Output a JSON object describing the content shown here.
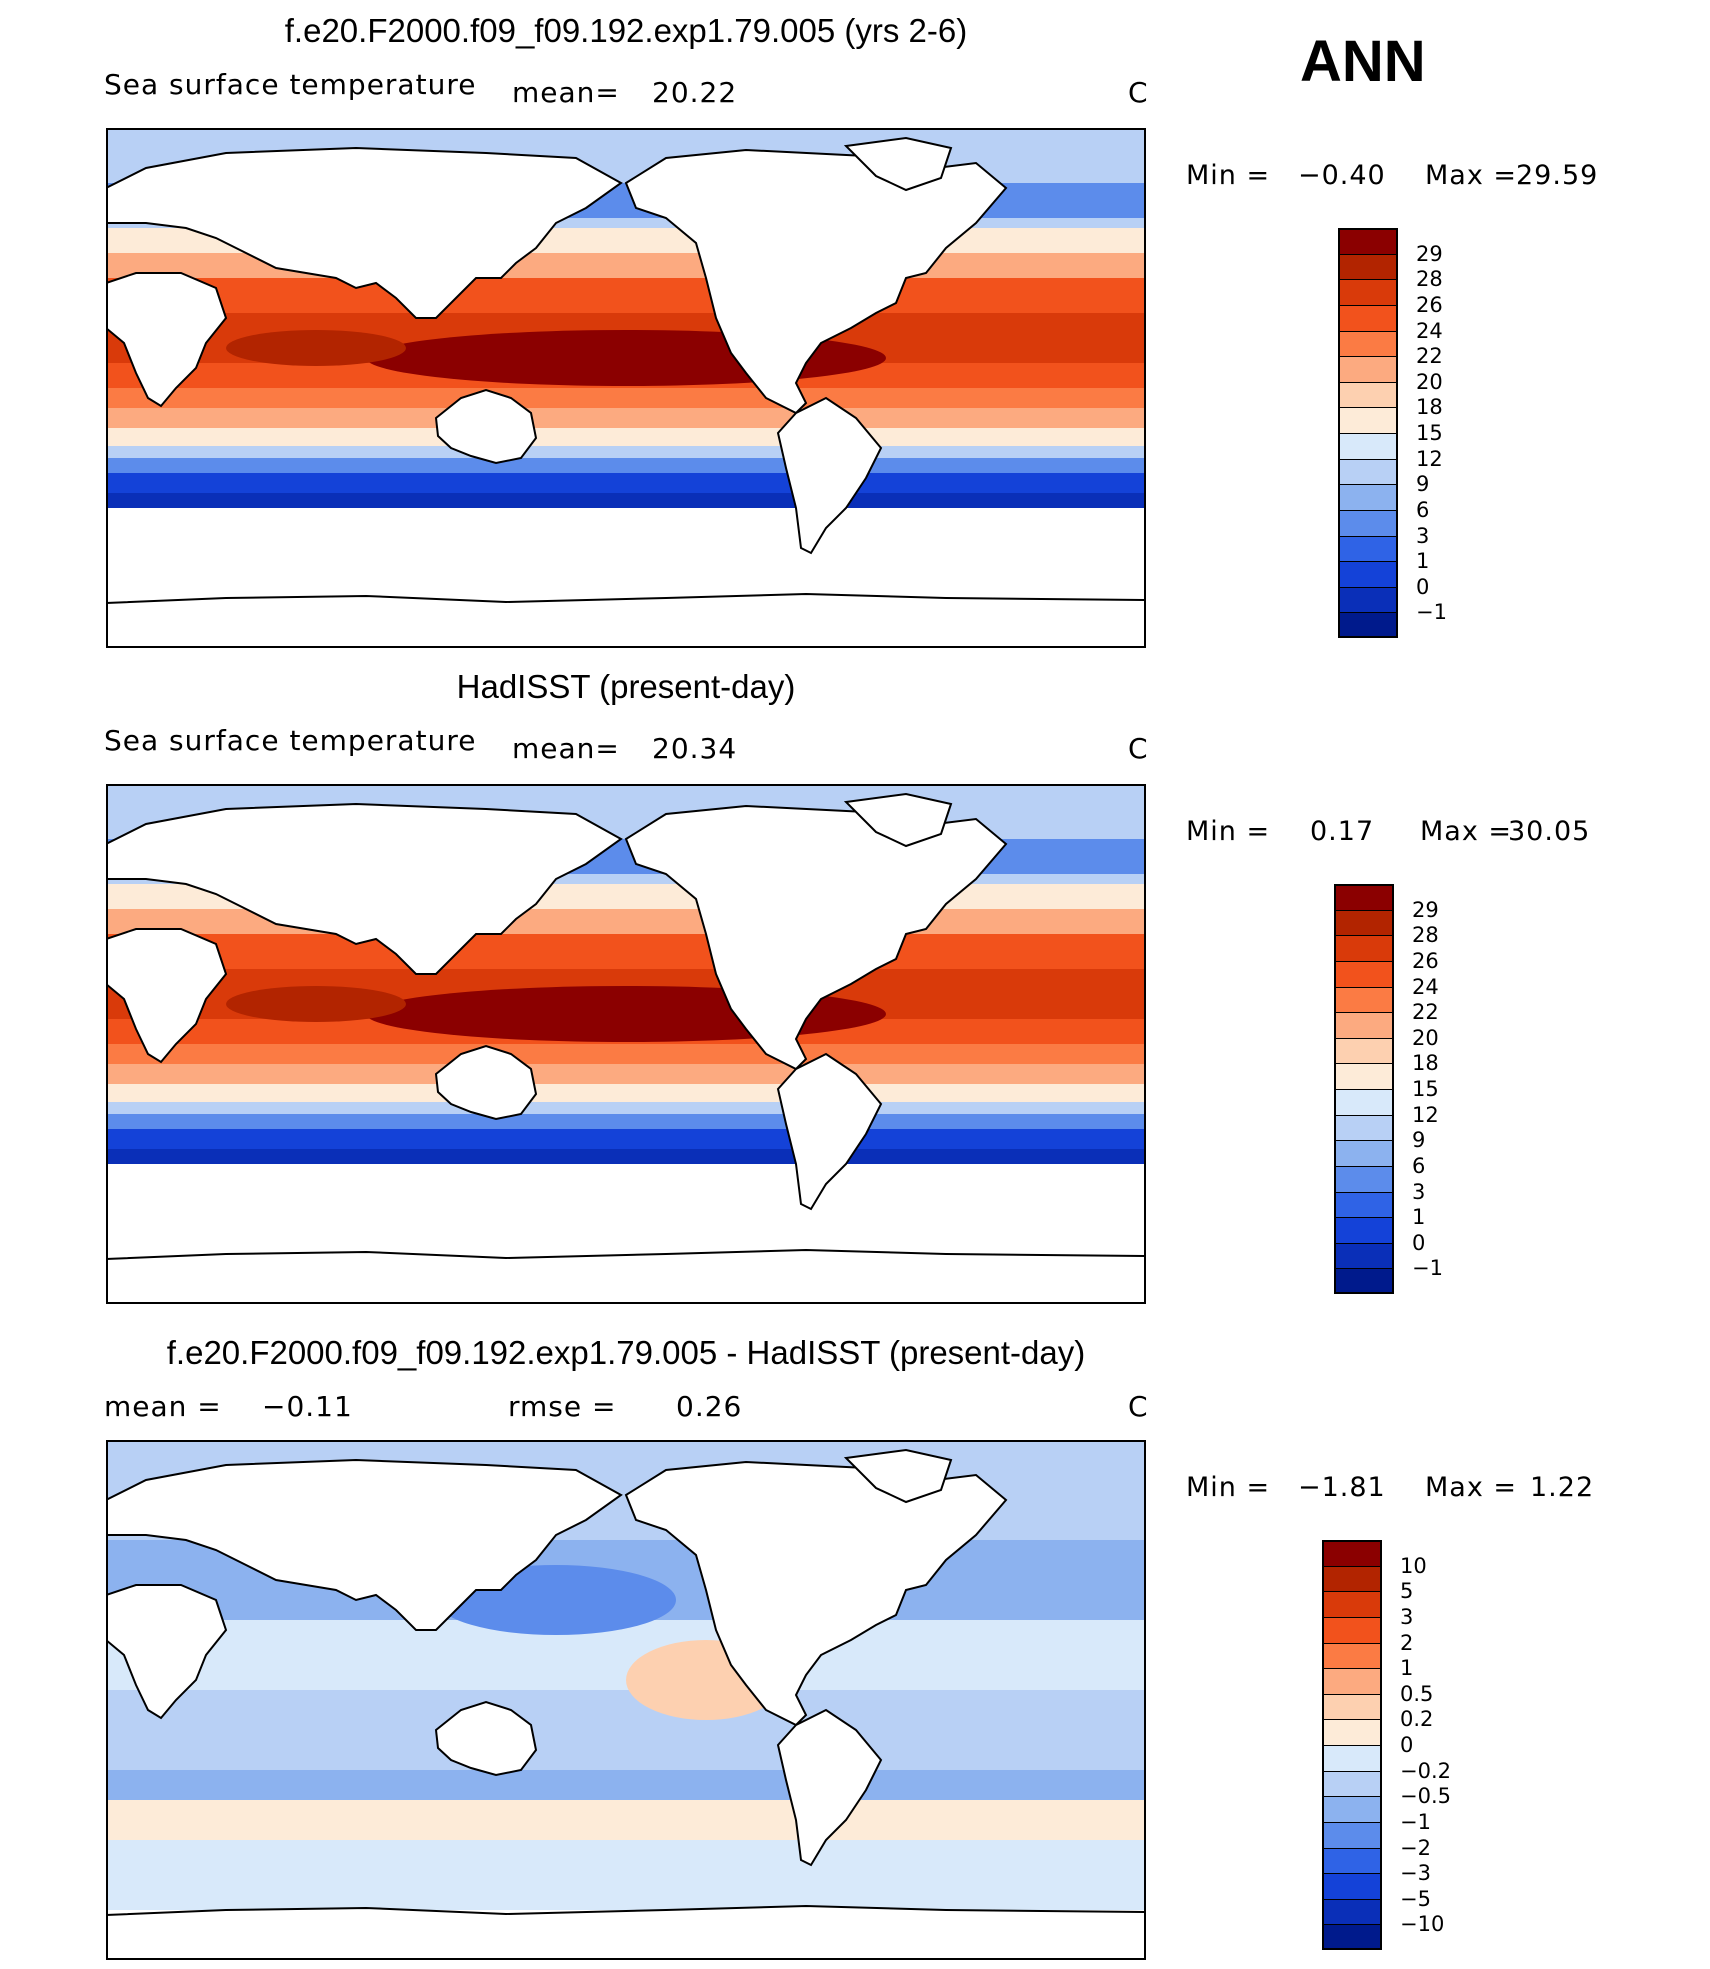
{
  "season": "ANN",
  "chart_data": [
    {
      "type": "heatmap",
      "title": "f.e20.F2000.f09_f09.192.exp1.79.005 (yrs 2-6)",
      "variable_label": "Sea surface temperature",
      "stat_label": "mean=",
      "stat_value": "20.22",
      "unit": "C",
      "min_label": "Min =",
      "min_value": "−0.40",
      "max_label": "Max =",
      "max_value": "29.59",
      "colorbar_labels": [
        "29",
        "28",
        "26",
        "24",
        "22",
        "20",
        "18",
        "15",
        "12",
        "9",
        "6",
        "3",
        "1",
        "0",
        "−1"
      ],
      "colors": [
        "#8b0000",
        "#b22400",
        "#d93a0a",
        "#f2521c",
        "#fb7b44",
        "#fcaa80",
        "#fdd0b0",
        "#fdebd8",
        "#d8e9fa",
        "#b8d0f5",
        "#8cb2ef",
        "#5c8ceb",
        "#2f63e6",
        "#1442d8",
        "#0a2fb8",
        "#001a8c"
      ]
    },
    {
      "type": "heatmap",
      "title": "HadISST (present-day)",
      "variable_label": "Sea surface temperature",
      "stat_label": "mean=",
      "stat_value": "20.34",
      "unit": "C",
      "min_label": "Min =",
      "min_value": "0.17",
      "max_label": "Max =",
      "max_value": "30.05",
      "colorbar_labels": [
        "29",
        "28",
        "26",
        "24",
        "22",
        "20",
        "18",
        "15",
        "12",
        "9",
        "6",
        "3",
        "1",
        "0",
        "−1"
      ],
      "colors": [
        "#8b0000",
        "#b22400",
        "#d93a0a",
        "#f2521c",
        "#fb7b44",
        "#fcaa80",
        "#fdd0b0",
        "#fdebd8",
        "#d8e9fa",
        "#b8d0f5",
        "#8cb2ef",
        "#5c8ceb",
        "#2f63e6",
        "#1442d8",
        "#0a2fb8",
        "#001a8c"
      ]
    },
    {
      "type": "heatmap",
      "title": "f.e20.F2000.f09_f09.192.exp1.79.005 - HadISST (present-day)",
      "stat_label": "mean =",
      "stat_value": "−0.11",
      "rmse_label": "rmse =",
      "rmse_value": "0.26",
      "unit": "C",
      "min_label": "Min =",
      "min_value": "−1.81",
      "max_label": "Max =",
      "max_value": "1.22",
      "colorbar_labels": [
        "10",
        "5",
        "3",
        "2",
        "1",
        "0.5",
        "0.2",
        "0",
        "−0.2",
        "−0.5",
        "−1",
        "−2",
        "−3",
        "−5",
        "−10"
      ],
      "colors": [
        "#8b0000",
        "#b22400",
        "#d93a0a",
        "#f2521c",
        "#fb7b44",
        "#fcaa80",
        "#fdd0b0",
        "#fdebd8",
        "#d8e9fa",
        "#b8d0f5",
        "#8cb2ef",
        "#5c8ceb",
        "#2f63e6",
        "#1442d8",
        "#0a2fb8",
        "#001a8c"
      ]
    }
  ]
}
